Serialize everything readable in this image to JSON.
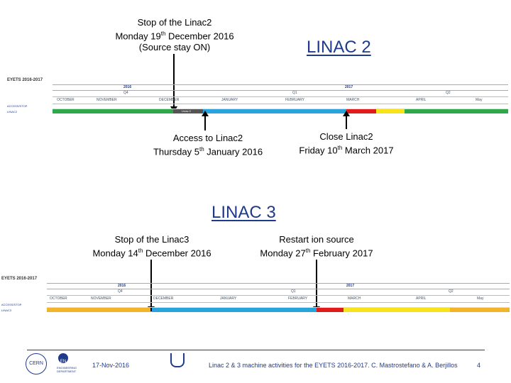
{
  "linac2": {
    "title": "LINAC 2",
    "stop": {
      "line1": "Stop of the Linac2",
      "line2a": "Monday 19",
      "line2sup": "th",
      "line2b": " December 2016",
      "line3": "(Source stay ON)"
    },
    "access": {
      "line1": "Access to Linac2",
      "line2a": "Thursday  5",
      "line2sup": "th",
      "line2b": " January 2016"
    },
    "close": {
      "line1": "Close Linac2",
      "line2a": "Friday 10",
      "line2sup": "th",
      "line2b": " March 2017"
    },
    "timeline": {
      "header": "EYETS 2016-2017",
      "year1": "2016",
      "year2": "2017",
      "q1": "Q4",
      "q2": "Q1",
      "q3": "Q2",
      "months": [
        "OCTOBER",
        "NOVEMBER",
        "DECEMBER",
        "JANUARY",
        "FEBRUARY",
        "MARCH",
        "APRIL",
        "May"
      ],
      "row1": "ACCESS/STOP",
      "row2": "LINAC2",
      "seg_label": "Linac 2"
    }
  },
  "linac3": {
    "title": "LINAC 3",
    "stop": {
      "line1": "Stop of the Linac3",
      "line2a": "Monday 14",
      "line2sup": "th",
      "line2b": " December 2016"
    },
    "restart": {
      "line1": "Restart ion source",
      "line2a": "Monday 27",
      "line2sup": "th",
      "line2b": " February 2017"
    },
    "timeline": {
      "header": "EYETS 2016-2017",
      "year1": "2016",
      "year2": "2017",
      "q1": "Q4",
      "q2": "Q1",
      "q3": "Q2",
      "months": [
        "OCTOBER",
        "NOVEMBER",
        "DECEMBER",
        "JANUARY",
        "FEBRUARY",
        "MARCH",
        "APRIL",
        "May"
      ],
      "row1": "ACCESS/STOP",
      "row2": "LINAC3"
    }
  },
  "footer": {
    "date": "17-Nov-2016",
    "text": "Linac 2 & 3 machine activities for the EYETS 2016-2017.  C. Mastrostefano & A. Berjillos",
    "page": "4",
    "cern": "CERN",
    "en": "EN",
    "dept": "ENGINEERING DEPARTMENT"
  },
  "colors": {
    "green": "#2ea84a",
    "blue": "#29a3dc",
    "red": "#e01b1b",
    "yellow": "#f6e31a",
    "orange": "#f4b42a",
    "title": "#1f3a8a"
  }
}
